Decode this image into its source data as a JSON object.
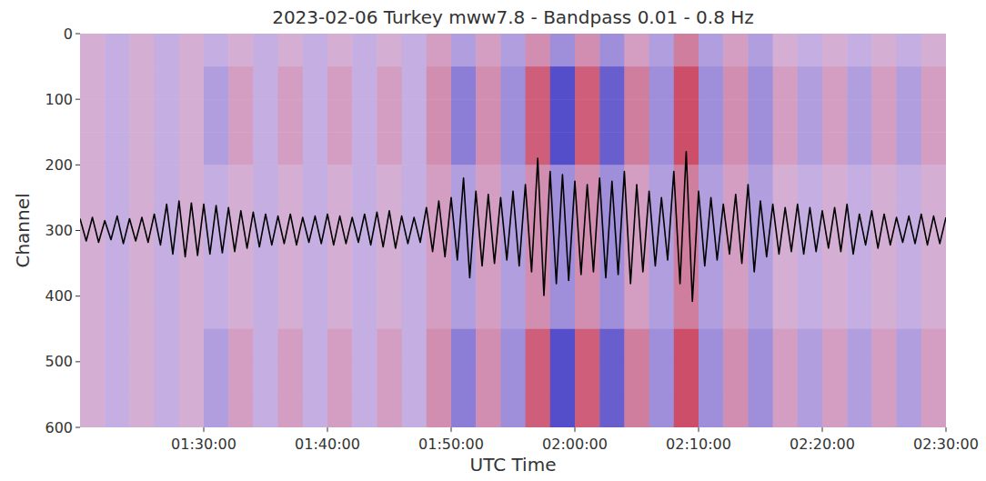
{
  "chart_data": {
    "type": "heatmap",
    "title": "2023-02-06 Turkey mww7.8 - Bandpass 0.01 - 0.8 Hz",
    "x_label": "UTC Time",
    "y_label": "Channel",
    "xlim": [
      "01:20:00",
      "02:30:00"
    ],
    "xticks": [
      "01:30:00",
      "01:40:00",
      "01:50:00",
      "02:00:00",
      "02:10:00",
      "02:20:00",
      "02:30:00"
    ],
    "ylim": [
      600,
      0
    ],
    "yticks": [
      0,
      100,
      200,
      300,
      400,
      500,
      600
    ],
    "heatmap": {
      "color_range": [
        -1,
        1
      ],
      "cells": [
        [
          0.1,
          -0.1,
          0.1,
          -0.1,
          0.1,
          -0.1,
          0.1,
          -0.1,
          0.1,
          -0.1,
          0.1,
          -0.1,
          0.1,
          -0.1,
          0.2,
          -0.2,
          0.2,
          -0.2,
          0.3,
          -0.3,
          0.3,
          -0.3,
          0.2,
          -0.2,
          0.4,
          -0.2,
          0.2,
          -0.2,
          0.1,
          -0.1,
          0.1,
          -0.1,
          0.1,
          -0.1,
          0.1
        ],
        [
          0.1,
          -0.1,
          0.1,
          -0.1,
          0.1,
          -0.2,
          0.2,
          -0.1,
          0.2,
          -0.1,
          0.2,
          -0.1,
          0.2,
          -0.1,
          0.3,
          -0.4,
          0.3,
          -0.3,
          0.6,
          -0.7,
          0.6,
          -0.6,
          0.4,
          -0.3,
          0.7,
          -0.3,
          0.3,
          -0.3,
          0.2,
          -0.2,
          0.2,
          -0.2,
          0.2,
          -0.2,
          0.2
        ],
        [
          0.1,
          -0.1,
          0.1,
          -0.1,
          0.1,
          -0.2,
          0.2,
          -0.1,
          0.2,
          -0.1,
          0.2,
          -0.1,
          0.2,
          -0.1,
          0.3,
          -0.4,
          0.3,
          -0.3,
          0.6,
          -0.7,
          0.6,
          -0.6,
          0.4,
          -0.3,
          0.7,
          -0.3,
          0.3,
          -0.3,
          0.2,
          -0.2,
          0.2,
          -0.2,
          0.2,
          -0.2,
          0.2
        ],
        [
          0.1,
          -0.1,
          0.1,
          -0.1,
          0.1,
          -0.2,
          0.2,
          -0.1,
          0.2,
          -0.1,
          0.2,
          -0.1,
          0.2,
          -0.1,
          0.3,
          -0.4,
          0.3,
          -0.3,
          0.6,
          -0.7,
          0.6,
          -0.6,
          0.4,
          -0.3,
          0.7,
          -0.3,
          0.3,
          -0.3,
          0.2,
          -0.2,
          0.2,
          -0.2,
          0.2,
          -0.2,
          0.2
        ],
        [
          0.1,
          -0.1,
          0.1,
          -0.1,
          0.1,
          -0.1,
          0.1,
          -0.1,
          0.1,
          -0.1,
          0.1,
          -0.1,
          0.1,
          -0.1,
          0.2,
          -0.2,
          0.2,
          -0.2,
          0.3,
          -0.3,
          0.3,
          -0.3,
          0.2,
          -0.2,
          0.4,
          -0.2,
          0.2,
          -0.2,
          0.1,
          -0.1,
          0.1,
          -0.1,
          0.1,
          -0.1,
          0.1
        ],
        [
          0.1,
          -0.1,
          0.1,
          -0.1,
          0.1,
          -0.1,
          0.1,
          -0.1,
          0.1,
          -0.1,
          0.1,
          -0.1,
          0.1,
          -0.1,
          0.2,
          -0.2,
          0.2,
          -0.2,
          0.3,
          -0.3,
          0.3,
          -0.3,
          0.2,
          -0.2,
          0.4,
          -0.2,
          0.2,
          -0.2,
          0.1,
          -0.1,
          0.1,
          -0.1,
          0.1,
          -0.1,
          0.1
        ],
        [
          0.1,
          -0.1,
          0.1,
          -0.1,
          0.1,
          -0.1,
          0.1,
          -0.1,
          0.1,
          -0.1,
          0.1,
          -0.1,
          0.1,
          -0.1,
          0.2,
          -0.2,
          0.2,
          -0.2,
          0.3,
          -0.3,
          0.3,
          -0.3,
          0.2,
          -0.2,
          0.4,
          -0.2,
          0.2,
          -0.2,
          0.1,
          -0.1,
          0.1,
          -0.1,
          0.1,
          -0.1,
          0.1
        ],
        [
          0.1,
          -0.1,
          0.1,
          -0.1,
          0.1,
          -0.1,
          0.1,
          -0.1,
          0.1,
          -0.1,
          0.1,
          -0.1,
          0.1,
          -0.1,
          0.2,
          -0.2,
          0.2,
          -0.2,
          0.3,
          -0.3,
          0.3,
          -0.3,
          0.2,
          -0.2,
          0.4,
          -0.2,
          0.2,
          -0.2,
          0.1,
          -0.1,
          0.1,
          -0.1,
          0.1,
          -0.1,
          0.1
        ],
        [
          0.1,
          -0.1,
          0.1,
          -0.1,
          0.1,
          -0.1,
          0.1,
          -0.1,
          0.1,
          -0.1,
          0.1,
          -0.1,
          0.1,
          -0.1,
          0.2,
          -0.2,
          0.2,
          -0.2,
          0.3,
          -0.3,
          0.3,
          -0.3,
          0.2,
          -0.2,
          0.4,
          -0.2,
          0.2,
          -0.2,
          0.1,
          -0.1,
          0.1,
          -0.1,
          0.1,
          -0.1,
          0.1
        ],
        [
          0.1,
          -0.1,
          0.1,
          -0.1,
          0.1,
          -0.2,
          0.2,
          -0.1,
          0.2,
          -0.1,
          0.2,
          -0.1,
          0.2,
          -0.1,
          0.3,
          -0.4,
          0.3,
          -0.3,
          0.6,
          -0.7,
          0.6,
          -0.6,
          0.4,
          -0.3,
          0.7,
          -0.3,
          0.3,
          -0.3,
          0.2,
          -0.2,
          0.2,
          -0.2,
          0.2,
          -0.2,
          0.2
        ],
        [
          0.1,
          -0.1,
          0.1,
          -0.1,
          0.1,
          -0.2,
          0.2,
          -0.1,
          0.2,
          -0.1,
          0.2,
          -0.1,
          0.2,
          -0.1,
          0.3,
          -0.4,
          0.3,
          -0.3,
          0.6,
          -0.7,
          0.6,
          -0.6,
          0.4,
          -0.3,
          0.7,
          -0.3,
          0.3,
          -0.3,
          0.2,
          -0.2,
          0.2,
          -0.2,
          0.2,
          -0.2,
          0.2
        ],
        [
          0.1,
          -0.1,
          0.1,
          -0.1,
          0.1,
          -0.2,
          0.2,
          -0.1,
          0.2,
          -0.1,
          0.2,
          -0.1,
          0.2,
          -0.1,
          0.3,
          -0.4,
          0.3,
          -0.3,
          0.6,
          -0.7,
          0.6,
          -0.6,
          0.4,
          -0.3,
          0.7,
          -0.3,
          0.3,
          -0.3,
          0.2,
          -0.2,
          0.2,
          -0.2,
          0.2,
          -0.2,
          0.2
        ]
      ]
    },
    "x": [
      "01:20:00",
      "01:20:30",
      "01:21:00",
      "01:21:30",
      "01:22:00",
      "01:22:30",
      "01:23:00",
      "01:23:30",
      "01:24:00",
      "01:24:30",
      "01:25:00",
      "01:25:30",
      "01:26:00",
      "01:26:30",
      "01:27:00",
      "01:27:30",
      "01:28:00",
      "01:28:30",
      "01:29:00",
      "01:29:30",
      "01:30:00",
      "01:30:30",
      "01:31:00",
      "01:31:30",
      "01:32:00",
      "01:32:30",
      "01:33:00",
      "01:33:30",
      "01:34:00",
      "01:34:30",
      "01:35:00",
      "01:35:30",
      "01:36:00",
      "01:36:30",
      "01:37:00",
      "01:37:30",
      "01:38:00",
      "01:38:30",
      "01:39:00",
      "01:39:30",
      "01:40:00",
      "01:40:30",
      "01:41:00",
      "01:41:30",
      "01:42:00",
      "01:42:30",
      "01:43:00",
      "01:43:30",
      "01:44:00",
      "01:44:30",
      "01:45:00",
      "01:45:30",
      "01:46:00",
      "01:46:30",
      "01:47:00",
      "01:47:30",
      "01:48:00",
      "01:48:30",
      "01:49:00",
      "01:49:30",
      "01:50:00",
      "01:50:30",
      "01:51:00",
      "01:51:30",
      "01:52:00",
      "01:52:30",
      "01:53:00",
      "01:53:30",
      "01:54:00",
      "01:54:30",
      "01:55:00",
      "01:55:30",
      "01:56:00",
      "01:56:30",
      "01:57:00",
      "01:57:30",
      "01:58:00",
      "01:58:30",
      "01:59:00",
      "01:59:30",
      "02:00:00",
      "02:00:30",
      "02:01:00",
      "02:01:30",
      "02:02:00",
      "02:02:30",
      "02:03:00",
      "02:03:30",
      "02:04:00",
      "02:04:30",
      "02:05:00",
      "02:05:30",
      "02:06:00",
      "02:06:30",
      "02:07:00",
      "02:07:30",
      "02:08:00",
      "02:08:30",
      "02:09:00",
      "02:09:30",
      "02:10:00",
      "02:10:30",
      "02:11:00",
      "02:11:30",
      "02:12:00",
      "02:12:30",
      "02:13:00",
      "02:13:30",
      "02:14:00",
      "02:14:30",
      "02:15:00",
      "02:15:30",
      "02:16:00",
      "02:16:30",
      "02:17:00",
      "02:17:30",
      "02:18:00",
      "02:18:30",
      "02:19:00",
      "02:19:30",
      "02:20:00",
      "02:20:30",
      "02:21:00",
      "02:21:30",
      "02:22:00",
      "02:22:30",
      "02:23:00",
      "02:23:30",
      "02:24:00",
      "02:24:30",
      "02:25:00",
      "02:25:30",
      "02:26:00",
      "02:26:30",
      "02:27:00",
      "02:27:30",
      "02:28:00",
      "02:28:30",
      "02:29:00",
      "02:29:30",
      "02:30:00"
    ],
    "series": [
      {
        "type": "line",
        "color": "#000000",
        "values": [
          282,
          316,
          280,
          318,
          285,
          314,
          278,
          320,
          282,
          316,
          280,
          318,
          275,
          322,
          260,
          336,
          255,
          340,
          258,
          338,
          260,
          336,
          262,
          334,
          265,
          332,
          270,
          327,
          272,
          325,
          275,
          322,
          278,
          320,
          275,
          322,
          280,
          318,
          278,
          320,
          275,
          322,
          278,
          320,
          280,
          318,
          275,
          322,
          272,
          325,
          270,
          327,
          278,
          320,
          280,
          318,
          265,
          332,
          255,
          340,
          250,
          345,
          220,
          372,
          240,
          354,
          245,
          350,
          250,
          345,
          240,
          354,
          230,
          363,
          190,
          399,
          210,
          381,
          215,
          376,
          225,
          367,
          230,
          363,
          220,
          372,
          225,
          367,
          210,
          381,
          230,
          363,
          240,
          354,
          250,
          345,
          210,
          381,
          180,
          408,
          240,
          354,
          250,
          345,
          260,
          336,
          245,
          350,
          230,
          363,
          255,
          340,
          260,
          336,
          265,
          332,
          260,
          336,
          265,
          332,
          270,
          327,
          265,
          332,
          260,
          336,
          275,
          322,
          270,
          327,
          275,
          322,
          280,
          318,
          278,
          320,
          275,
          322,
          278,
          320,
          280
        ]
      }
    ]
  }
}
